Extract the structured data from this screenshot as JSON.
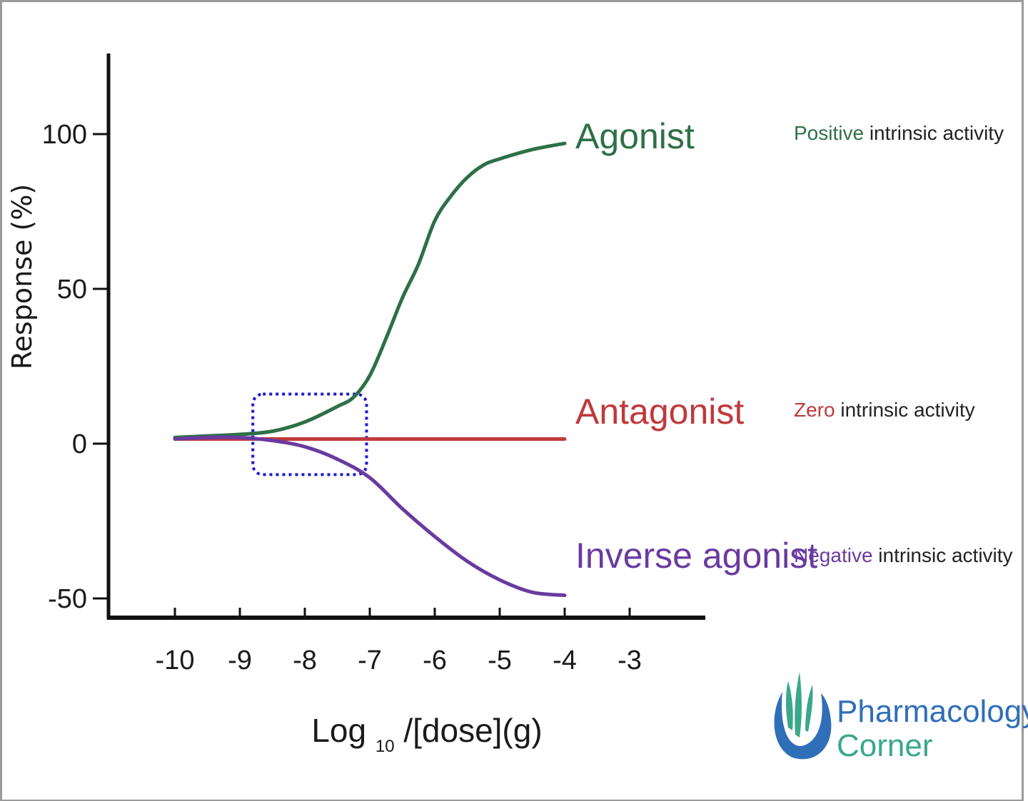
{
  "chart_data": {
    "type": "line",
    "xlabel": "Log",
    "xlabel_sub": "10",
    "xlabel_rest": "/[dose](g)",
    "ylabel": "Response (%)",
    "xlim": [
      -11,
      -1.8
    ],
    "ylim": [
      -55,
      125
    ],
    "x_ticks": [
      -10,
      -9,
      -8,
      -7,
      -6,
      -5,
      -4,
      -3
    ],
    "y_ticks": [
      100,
      50,
      0,
      -50
    ],
    "grid": false,
    "series": [
      {
        "name": "Agonist",
        "color": "#2e7046",
        "x": [
          -10,
          -9.5,
          -9,
          -8.5,
          -8,
          -7.5,
          -7.25,
          -7,
          -6.75,
          -6.5,
          -6.25,
          -6,
          -5.75,
          -5.5,
          -5.25,
          -5,
          -4.5,
          -4
        ],
        "y": [
          2,
          2.5,
          3,
          4,
          7,
          12,
          15,
          22,
          34,
          47,
          58,
          72,
          80,
          86,
          90,
          92,
          95,
          97
        ]
      },
      {
        "name": "Antagonist",
        "color": "#c0393b",
        "x": [
          -10,
          -4
        ],
        "y": [
          1.5,
          1.5
        ]
      },
      {
        "name": "Inverse agonist",
        "color": "#6a3aa0",
        "x": [
          -10,
          -9.5,
          -9,
          -8.5,
          -8,
          -7.5,
          -7,
          -6.5,
          -6,
          -5.5,
          -5,
          -4.5,
          -4
        ],
        "y": [
          1.5,
          2,
          2,
          1,
          -1,
          -5,
          -11,
          -21,
          -30,
          -38,
          -44,
          -48,
          -49
        ]
      }
    ]
  },
  "annotations": [
    {
      "prefix": "Positive",
      "rest": " intrinsic activity",
      "prefix_color": "#2e7046"
    },
    {
      "prefix": "Zero",
      "rest": " intrinsic activity",
      "prefix_color": "#c0393b"
    },
    {
      "prefix": "Negative",
      "rest": " intrinsic activity",
      "prefix_color": "#6a3aa0"
    }
  ],
  "highlight_box": {
    "x_from": -8.8,
    "x_to": -7.05,
    "y_from": -10,
    "y_to": 16,
    "color": "#1a1ad6"
  },
  "logo": {
    "line1": "Pharmacology",
    "line2": "Corner",
    "color1": "#2f6fb8",
    "color2": "#3aa88a"
  }
}
